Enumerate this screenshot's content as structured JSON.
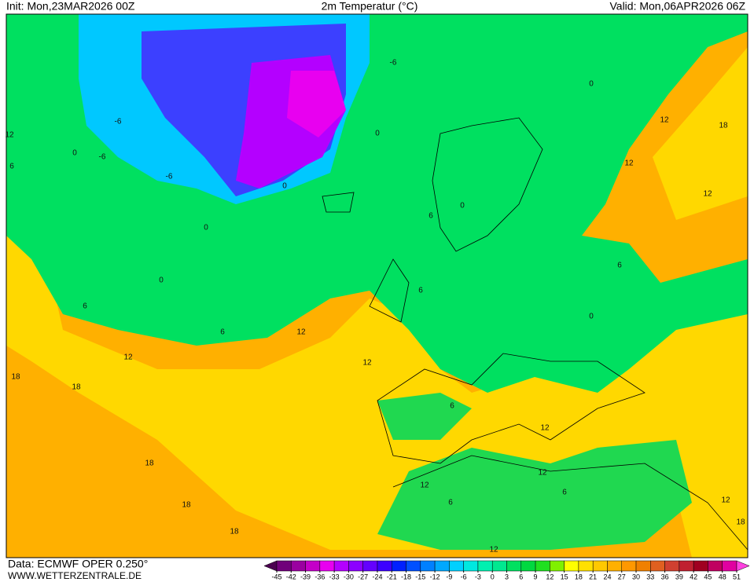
{
  "header": {
    "init": "Init: Mon,23MAR2026 00Z",
    "title": "2m Temperatur (°C)",
    "valid": "Valid: Mon,06APR2026 06Z"
  },
  "footer": {
    "data": "Data: ECMWF OPER 0.250°",
    "site": "WWW.WETTERZENTRALE.DE"
  },
  "legend": {
    "ticks": [
      -45,
      -42,
      -39,
      -36,
      -33,
      -30,
      -27,
      -24,
      -21,
      -18,
      -15,
      -12,
      -9,
      -6,
      -3,
      0,
      3,
      6,
      9,
      12,
      15,
      18,
      21,
      24,
      27,
      30,
      33,
      36,
      39,
      42,
      45,
      48,
      51
    ],
    "colors": [
      "#4b0050",
      "#70007a",
      "#9a00a0",
      "#c400c8",
      "#e800f0",
      "#b400ff",
      "#8c00ff",
      "#6400ff",
      "#3c00ff",
      "#0020ff",
      "#0050ff",
      "#0080ff",
      "#00a8ff",
      "#00d0ff",
      "#00e8e0",
      "#00f0b0",
      "#00e890",
      "#00e060",
      "#00d840",
      "#20e020",
      "#80f000",
      "#ffff00",
      "#ffe000",
      "#ffc800",
      "#ffb000",
      "#ff9800",
      "#f08000",
      "#e06020",
      "#d04030",
      "#c02030",
      "#a00020",
      "#c00060",
      "#e000a0",
      "#ff40e0"
    ]
  },
  "contour_labels": [
    -6,
    -6,
    -6,
    -6,
    0,
    0,
    0,
    0,
    0,
    0,
    0,
    0,
    6,
    6,
    6,
    6,
    6,
    6,
    6,
    6,
    12,
    12,
    12,
    12,
    12,
    12,
    12,
    12,
    12,
    12,
    12,
    18,
    18,
    18,
    18,
    18,
    18,
    18,
    12,
    6
  ]
}
